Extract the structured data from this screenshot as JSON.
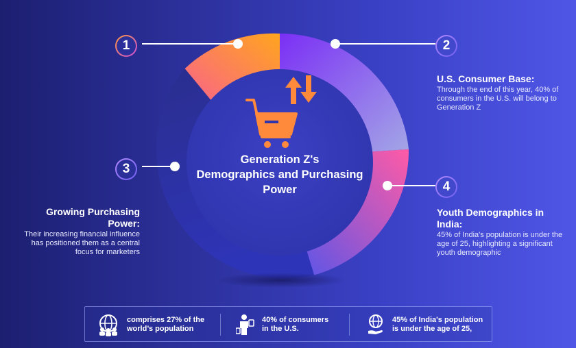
{
  "center": {
    "title_line1": "Generation Z's",
    "title_line2": "Demographics and Purchasing",
    "title_line3": "Power"
  },
  "badges": [
    "1",
    "2",
    "3",
    "4"
  ],
  "points": [
    {
      "number": "2",
      "heading": "U.S. Consumer Base:",
      "body": "Through the end of this year, 40% of consumers in the U.S. will belong to Generation Z"
    },
    {
      "number": "3",
      "heading_line1": "Growing Purchasing",
      "heading_line2": "Power:",
      "body": "Their increasing financial influence has positioned them as a central focus for marketers"
    },
    {
      "number": "4",
      "heading_line1": "Youth Demographics in",
      "heading_line2": "India:",
      "body": "45% of India's population is under the age of 25, highlighting a significant youth demographic"
    }
  ],
  "stats": [
    {
      "icon": "global-people-icon",
      "text": "comprises 27% of the\nworld’s population"
    },
    {
      "icon": "consumer-shopping-icon",
      "text": "40% of consumers\nin the U.S."
    },
    {
      "icon": "globe-hand-icon",
      "text": "45% of India's population\nis under the age of 25,"
    }
  ],
  "colors": {
    "segment1": "#ff9a3c",
    "segment2": "#9b7cf3",
    "segment3": "#2b2f95",
    "segment4": "#f0559c",
    "cart": "#ff8a3c"
  }
}
